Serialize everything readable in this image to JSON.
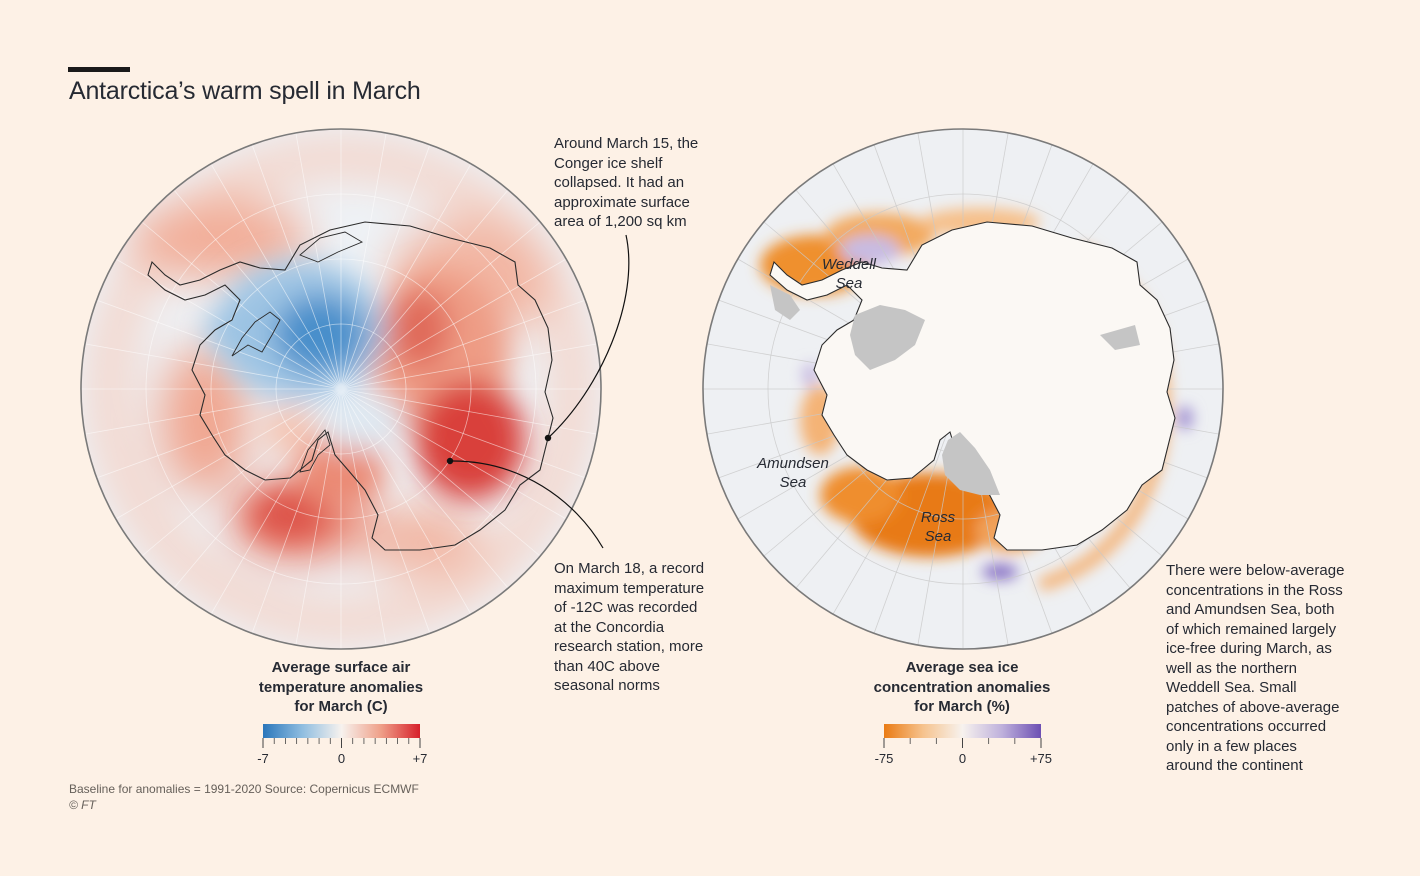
{
  "header": {
    "title": "Antarctica’s warm spell in March"
  },
  "left_map": {
    "legend": {
      "title_lines": [
        "Average surface air",
        "temperature anomalies",
        "for March (C)"
      ],
      "tick_labels": [
        "-7",
        "0",
        "+7"
      ],
      "colors": {
        "min": "#2a76bb",
        "mid": "#f7f2ee",
        "max": "#d7202b"
      }
    },
    "annotations": {
      "conger": [
        "Around March 15, the",
        "Conger ice shelf",
        "collapsed. It had an",
        "approximate surface",
        "area of 1,200 sq km"
      ],
      "concordia": [
        "On March 18, a record",
        "maximum temperature",
        "of -12C was recorded",
        "at the Concordia",
        "research station, more",
        "than 40C above",
        "seasonal norms"
      ]
    }
  },
  "right_map": {
    "legend": {
      "title_lines": [
        "Average sea ice",
        "concentration anomalies",
        "for March (%)"
      ],
      "tick_labels": [
        "-75",
        "0",
        "+75"
      ],
      "colors": {
        "min": "#ea7b14",
        "mid": "#f7f2ee",
        "max": "#6d4fb3"
      }
    },
    "sea_labels": {
      "weddell": [
        "Weddell",
        "Sea"
      ],
      "amundsen": [
        "Amundsen",
        "Sea"
      ],
      "ross": [
        "Ross",
        "Sea"
      ]
    },
    "annotation": [
      "There were below-average",
      "concentrations in the Ross",
      "and Amundsen Sea, both",
      "of which remained largely",
      "ice-free during March, as",
      "well as the northern",
      "Weddell Sea. Small",
      "patches of above-average",
      "concentrations occurred",
      "only in a few places",
      "around the continent"
    ]
  },
  "footer": {
    "source": "Baseline for anomalies = 1991-2020   Source: Copernicus ECMWF",
    "credit": "© FT"
  }
}
